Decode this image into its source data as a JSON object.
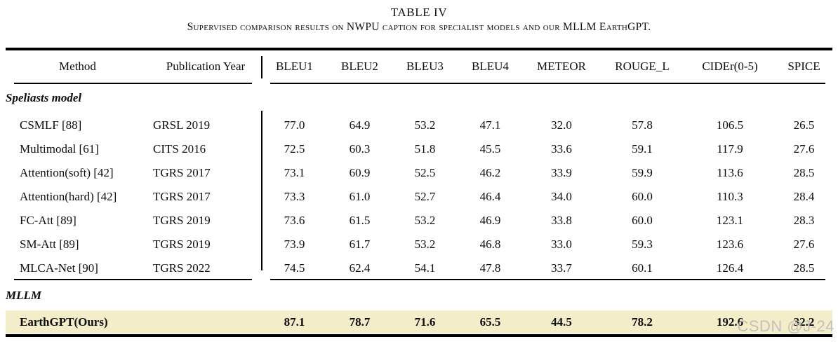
{
  "caption": {
    "title": "TABLE IV",
    "subtitle": "Supervised comparison results on NWPU caption for specialist models and our MLLM EarthGPT."
  },
  "colors": {
    "highlight_row_background": "#f3edca",
    "rule_color": "#000000",
    "text_color": "#0d0d0d",
    "watermark_color": "rgba(185,185,185,0.85)"
  },
  "watermark": "CSDN @J-24",
  "table": {
    "columns": [
      "Method",
      "Publication Year",
      "BLEU1",
      "BLEU2",
      "BLEU3",
      "BLEU4",
      "METEOR",
      "ROUGE_L",
      "CIDEr(0-5)",
      "SPICE"
    ],
    "sections": [
      {
        "label": "Speliasts model",
        "rows": [
          {
            "method": "CSMLF [88]",
            "publication": "GRSL 2019",
            "values": [
              "77.0",
              "64.9",
              "53.2",
              "47.1",
              "32.0",
              "57.8",
              "106.5",
              "26.5"
            ],
            "highlight": false
          },
          {
            "method": "Multimodal [61]",
            "publication": "CITS 2016",
            "values": [
              "72.5",
              "60.3",
              "51.8",
              "45.5",
              "33.6",
              "59.1",
              "117.9",
              "27.6"
            ],
            "highlight": false
          },
          {
            "method": "Attention(soft) [42]",
            "publication": "TGRS 2017",
            "values": [
              "73.1",
              "60.9",
              "52.5",
              "46.2",
              "33.9",
              "59.9",
              "113.6",
              "28.5"
            ],
            "highlight": false
          },
          {
            "method": "Attention(hard) [42]",
            "publication": "TGRS 2017",
            "values": [
              "73.3",
              "61.0",
              "52.7",
              "46.4",
              "34.0",
              "60.0",
              "110.3",
              "28.4"
            ],
            "highlight": false
          },
          {
            "method": "FC-Att [89]",
            "publication": "TGRS 2019",
            "values": [
              "73.6",
              "61.5",
              "53.2",
              "46.9",
              "33.8",
              "60.0",
              "123.1",
              "28.3"
            ],
            "highlight": false
          },
          {
            "method": "SM-Att [89]",
            "publication": "TGRS 2019",
            "values": [
              "73.9",
              "61.7",
              "53.2",
              "46.8",
              "33.0",
              "59.3",
              "123.6",
              "27.6"
            ],
            "highlight": false
          },
          {
            "method": "MLCA-Net [90]",
            "publication": "TGRS 2022",
            "values": [
              "74.5",
              "62.4",
              "54.1",
              "47.8",
              "33.7",
              "60.1",
              "126.4",
              "28.5"
            ],
            "highlight": false
          }
        ]
      },
      {
        "label": "MLLM",
        "rows": [
          {
            "method": "EarthGPT(Ours)",
            "publication": "",
            "values": [
              "87.1",
              "78.7",
              "71.6",
              "65.5",
              "44.5",
              "78.2",
              "192.6",
              "32.2"
            ],
            "highlight": true
          }
        ]
      }
    ]
  }
}
